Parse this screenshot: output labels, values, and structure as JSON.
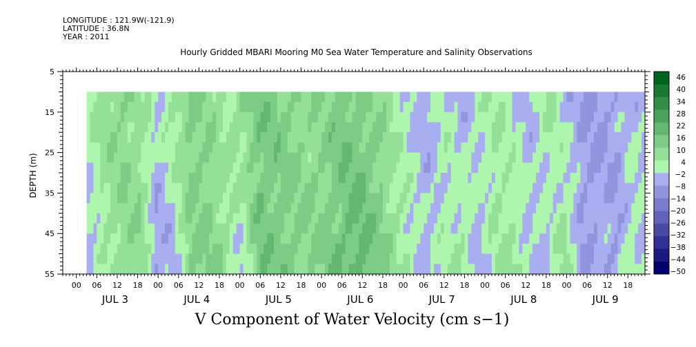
{
  "header": {
    "longitude": "LONGITUDE : 121.9W(-121.9)",
    "latitude": "LATITUDE : 36.8N",
    "year": "YEAR : 2011"
  },
  "chart_data": {
    "type": "heatmap",
    "title": "Hourly Gridded MBARI Mooring M0 Sea Water Temperature and Salinity Observations",
    "xlabel": "V Component of Water Velocity (cm s−1)",
    "ylabel": "DEPTH (m)",
    "y_ticks": [
      5,
      15,
      25,
      35,
      45,
      55
    ],
    "ylim": [
      5,
      55
    ],
    "y_inverted": true,
    "x_hour_ticks": [
      "00",
      "06",
      "12",
      "18",
      "00",
      "06",
      "12",
      "18",
      "00",
      "06",
      "12",
      "18",
      "00",
      "06",
      "12",
      "18",
      "00",
      "06",
      "12",
      "18",
      "00",
      "06",
      "12",
      "18",
      "00",
      "06",
      "12",
      "18"
    ],
    "x_day_labels": [
      "JUL  3",
      "JUL  4",
      "JUL  5",
      "JUL  6",
      "JUL  7",
      "JUL  8",
      "JUL  9"
    ],
    "x_start": "2011-07-02 20:00",
    "x_end": "2011-07-09 23:00",
    "data_start": "2011-07-03 03:00",
    "data_depth_range": [
      10,
      55
    ],
    "colorbar": {
      "levels": [
        -50,
        -44,
        -38,
        -32,
        -26,
        -20,
        -14,
        -8,
        -2,
        4,
        10,
        16,
        22,
        28,
        34,
        40,
        46
      ],
      "labels": [
        "46",
        "40",
        "34",
        "28",
        "22",
        "16",
        "10",
        "4",
        "−2",
        "−8",
        "−14",
        "−20",
        "−26",
        "−32",
        "−38",
        "−44",
        "−50"
      ],
      "low_color": "#00006e",
      "mid_low_color": "#a9aef0",
      "mid_high_color": "#aef5ae",
      "high_color": "#00641e"
    },
    "approx_v_by_day_column": {
      "hours": [
        3,
        8,
        13,
        18,
        23,
        28,
        33,
        38,
        43,
        48,
        53,
        58,
        63,
        68,
        73,
        78,
        83,
        88,
        93,
        98,
        103,
        108,
        113,
        118,
        123,
        128,
        133,
        138,
        143,
        148,
        153,
        158,
        163,
        168
      ],
      "v_upper": [
        3,
        8,
        10,
        6,
        -2,
        6,
        12,
        8,
        3,
        10,
        14,
        12,
        10,
        8,
        10,
        14,
        12,
        8,
        4,
        -3,
        -5,
        0,
        -6,
        2,
        4,
        -2,
        -4,
        6,
        -4,
        -8,
        -10,
        -6,
        -4,
        -2
      ],
      "v_lower": [
        -6,
        2,
        8,
        10,
        -8,
        -6,
        10,
        12,
        8,
        -4,
        14,
        14,
        12,
        10,
        12,
        16,
        20,
        14,
        6,
        2,
        -4,
        2,
        6,
        -6,
        4,
        6,
        -2,
        -6,
        8,
        -8,
        -4,
        -8,
        2,
        -4
      ]
    }
  }
}
